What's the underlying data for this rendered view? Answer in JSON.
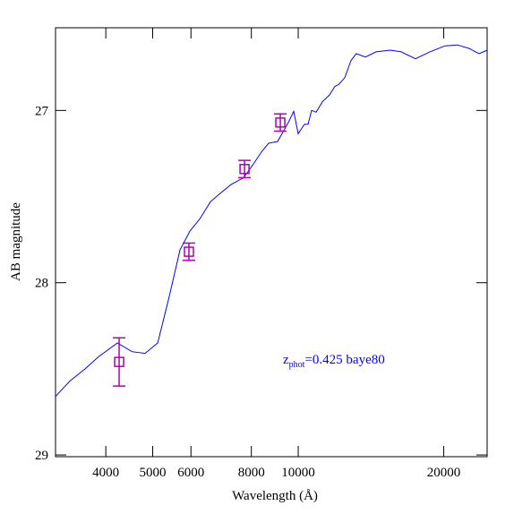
{
  "chart_data": {
    "type": "line",
    "xlabel": "Wavelength (Å)",
    "ylabel": "AB magnitude",
    "log_x": true,
    "xlim": [
      3148,
      24590
    ],
    "xticks": [
      4000,
      5000,
      6000,
      8000,
      10000,
      20000
    ],
    "ylim": [
      29.01,
      26.52
    ],
    "yticks": [
      27,
      28,
      29
    ],
    "line": {
      "color": "#0000ff",
      "x": [
        3148,
        3373,
        3625,
        3864,
        4227,
        4529,
        4822,
        5120,
        5390,
        5696,
        5970,
        6257,
        6584,
        6902,
        7265,
        7712,
        8081,
        8397,
        8687,
        9066,
        9301,
        9541,
        9788,
        10000,
        10303,
        10481,
        10660,
        10890,
        11220,
        11610,
        11910,
        12120,
        12480,
        12860,
        13190,
        13770,
        14490,
        15510,
        16330,
        17480,
        18720,
        20130,
        21360,
        22580,
        23660,
        24590
      ],
      "values": [
        28.66,
        28.57,
        28.5,
        28.43,
        28.35,
        28.4,
        28.41,
        28.35,
        28.1,
        27.81,
        27.7,
        27.63,
        27.53,
        27.48,
        27.43,
        27.39,
        27.31,
        27.24,
        27.19,
        27.18,
        27.125,
        27.07,
        27.005,
        27.135,
        27.08,
        27.08,
        27.0,
        27.01,
        26.95,
        26.91,
        26.86,
        26.85,
        26.81,
        26.71,
        26.67,
        26.69,
        26.66,
        26.65,
        26.66,
        26.7,
        26.66,
        26.625,
        26.62,
        26.64,
        26.67,
        26.65
      ]
    },
    "points": {
      "color": "#b000b0",
      "x": [
        4262,
        5942,
        7744,
        9183
      ],
      "values": [
        28.46,
        27.82,
        27.34,
        27.07
      ],
      "errors": [
        0.14,
        0.05,
        0.05,
        0.05
      ]
    },
    "annotation": {
      "main": "z",
      "subscript": "phot",
      "rest": "=0.425 baye80",
      "color": "#0000ff",
      "x": 9300,
      "y": 28.47
    }
  }
}
